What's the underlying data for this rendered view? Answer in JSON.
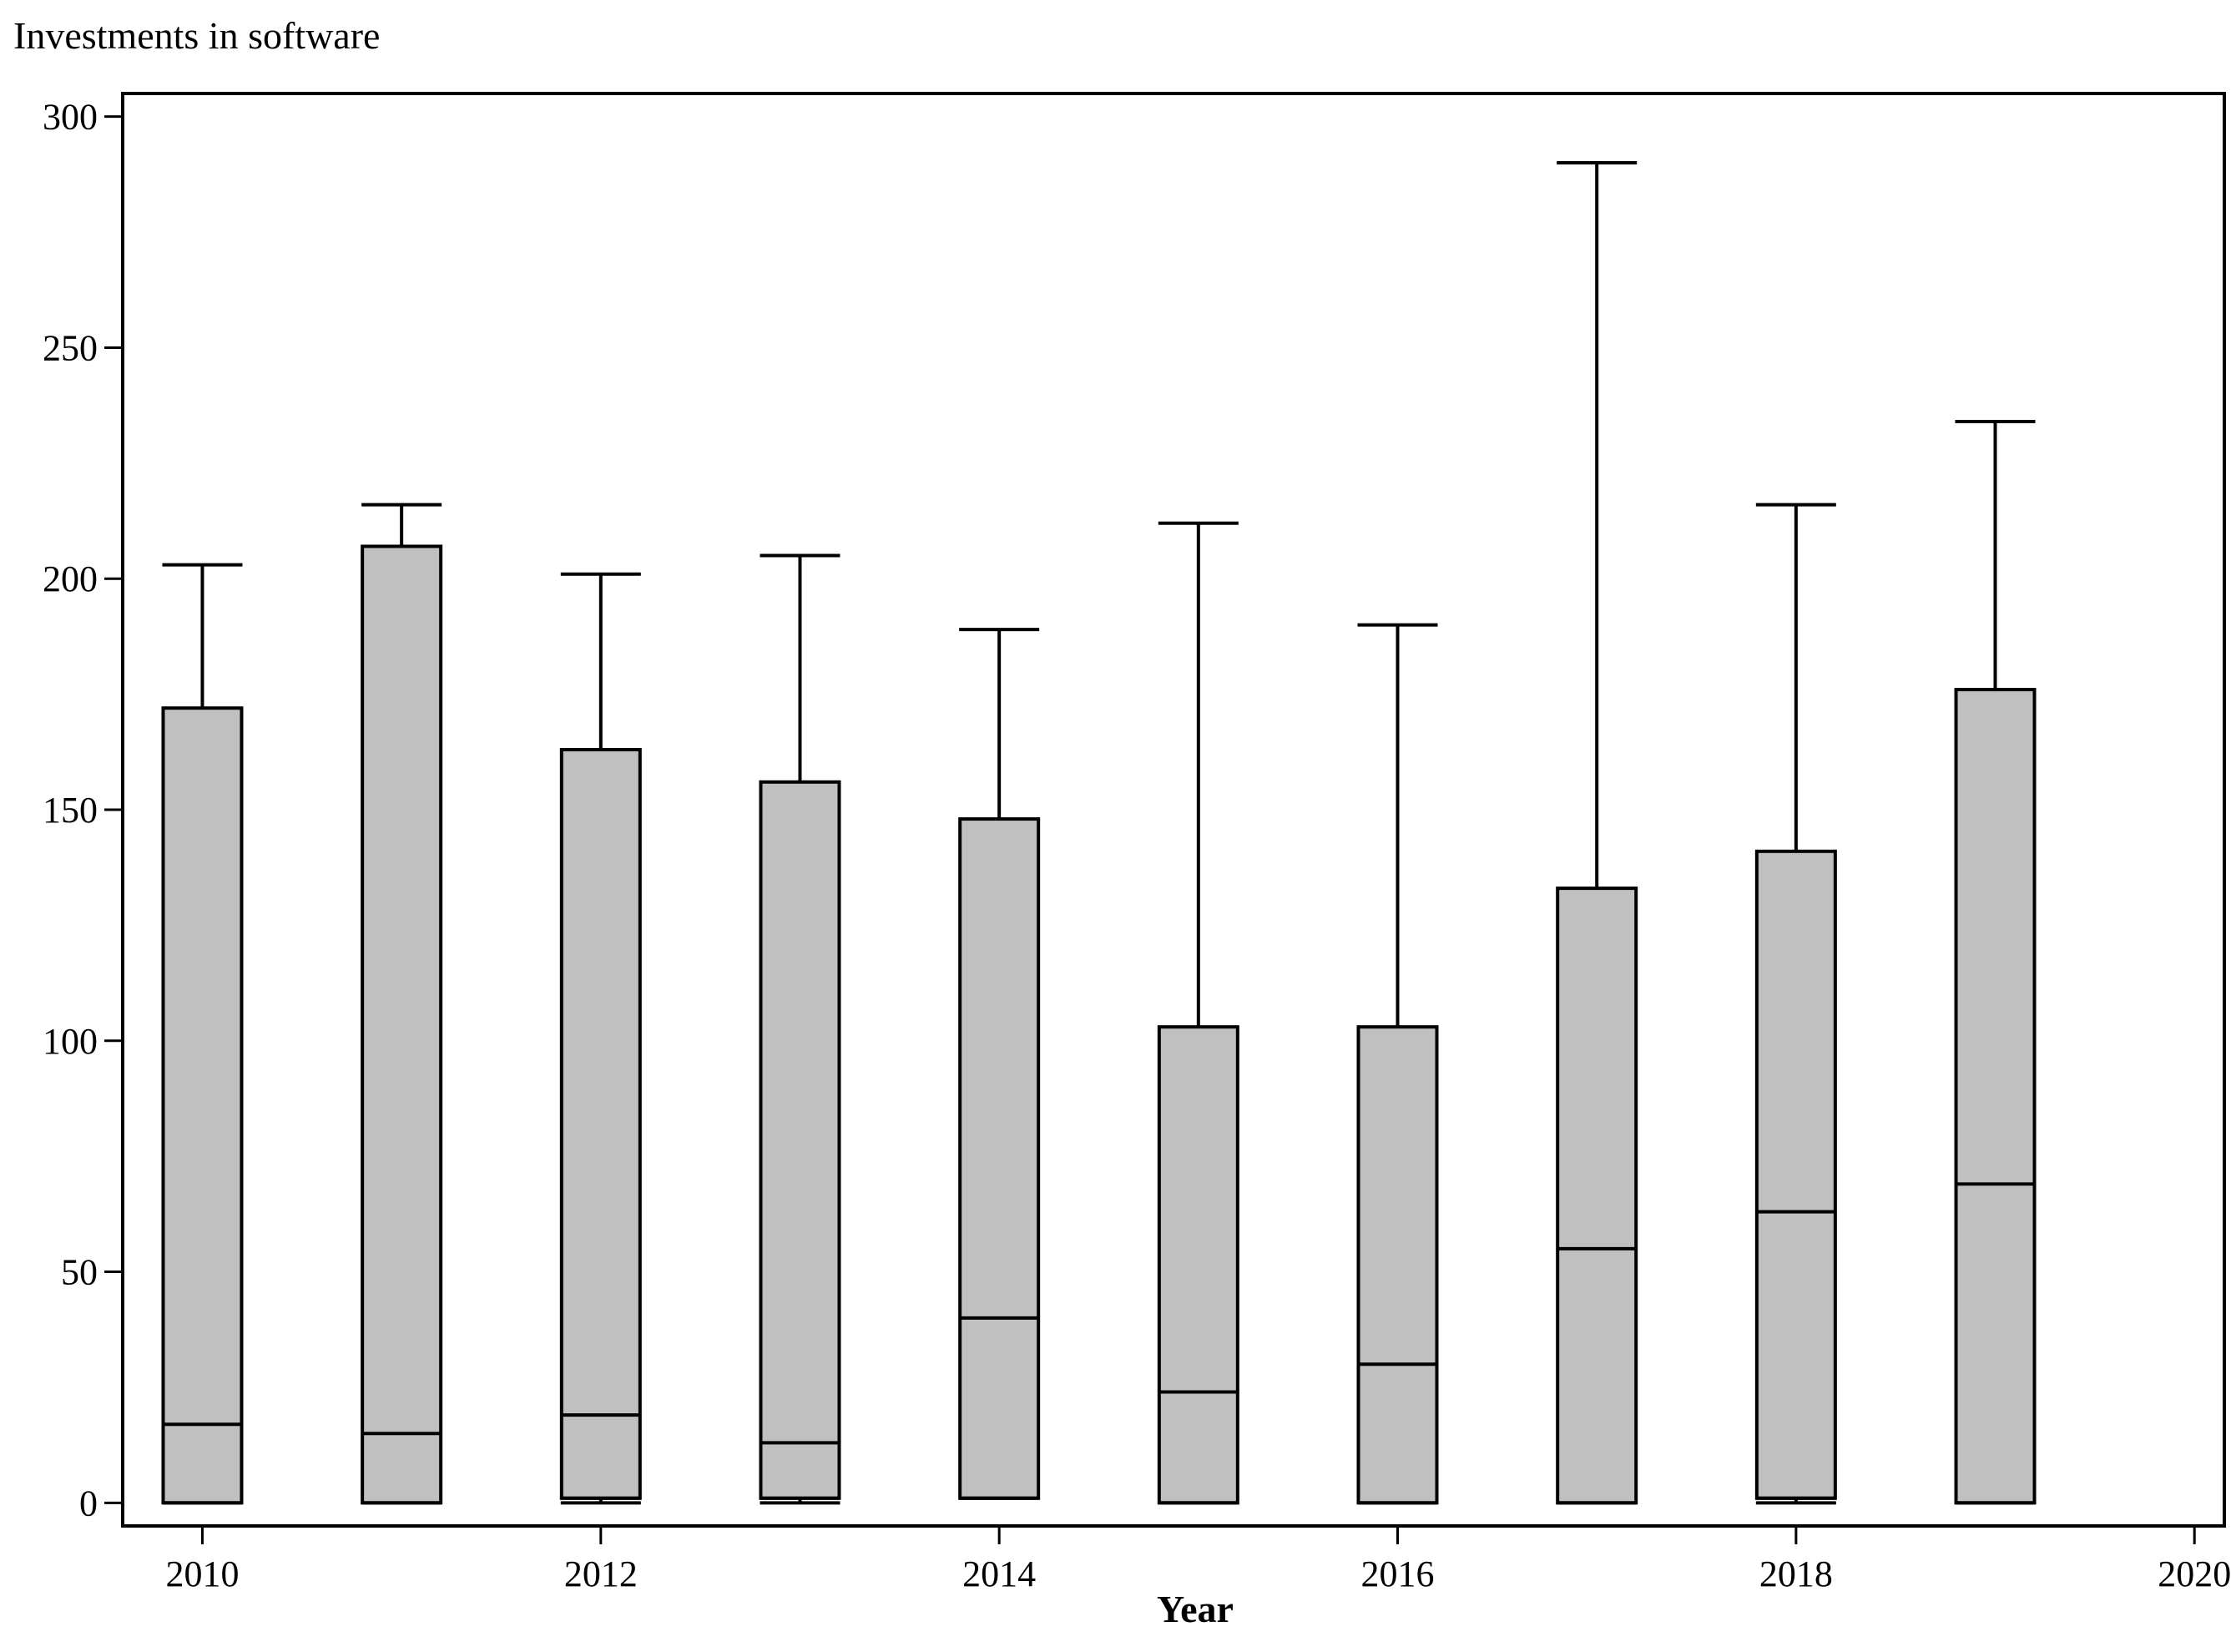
{
  "chart_data": {
    "type": "boxplot",
    "title": "",
    "ylabel": "Investments in software",
    "xlabel": "Year",
    "ylim": [
      -5,
      305
    ],
    "xlim": [
      2009.6,
      2020.15
    ],
    "yticks": [
      0,
      50,
      100,
      150,
      200,
      250,
      300
    ],
    "xticks": [
      2010,
      2012,
      2014,
      2016,
      2018,
      2020
    ],
    "grid": false,
    "box_fill": "#c0c0c0",
    "line_color": "#000000",
    "boxes": [
      {
        "x": 2010,
        "whisker_low": 0,
        "q1": 0,
        "median": 17,
        "q3": 172,
        "whisker_high": 203
      },
      {
        "x": 2011,
        "whisker_low": 0,
        "q1": 0,
        "median": 15,
        "q3": 207,
        "whisker_high": 216
      },
      {
        "x": 2012,
        "whisker_low": 0,
        "q1": 1,
        "median": 19,
        "q3": 163,
        "whisker_high": 201
      },
      {
        "x": 2013,
        "whisker_low": 0,
        "q1": 1,
        "median": 13,
        "q3": 156,
        "whisker_high": 205
      },
      {
        "x": 2014,
        "whisker_low": 1,
        "q1": 1,
        "median": 40,
        "q3": 148,
        "whisker_high": 189
      },
      {
        "x": 2015,
        "whisker_low": 0,
        "q1": 0,
        "median": 24,
        "q3": 103,
        "whisker_high": 212
      },
      {
        "x": 2016,
        "whisker_low": 0,
        "q1": 0,
        "median": 30,
        "q3": 103,
        "whisker_high": 190
      },
      {
        "x": 2017,
        "whisker_low": 0,
        "q1": 0,
        "median": 55,
        "q3": 133,
        "whisker_high": 290
      },
      {
        "x": 2018,
        "whisker_low": 0,
        "q1": 1,
        "median": 63,
        "q3": 141,
        "whisker_high": 216
      },
      {
        "x": 2019,
        "whisker_low": 0,
        "q1": 0,
        "median": 69,
        "q3": 176,
        "whisker_high": 234
      }
    ]
  }
}
